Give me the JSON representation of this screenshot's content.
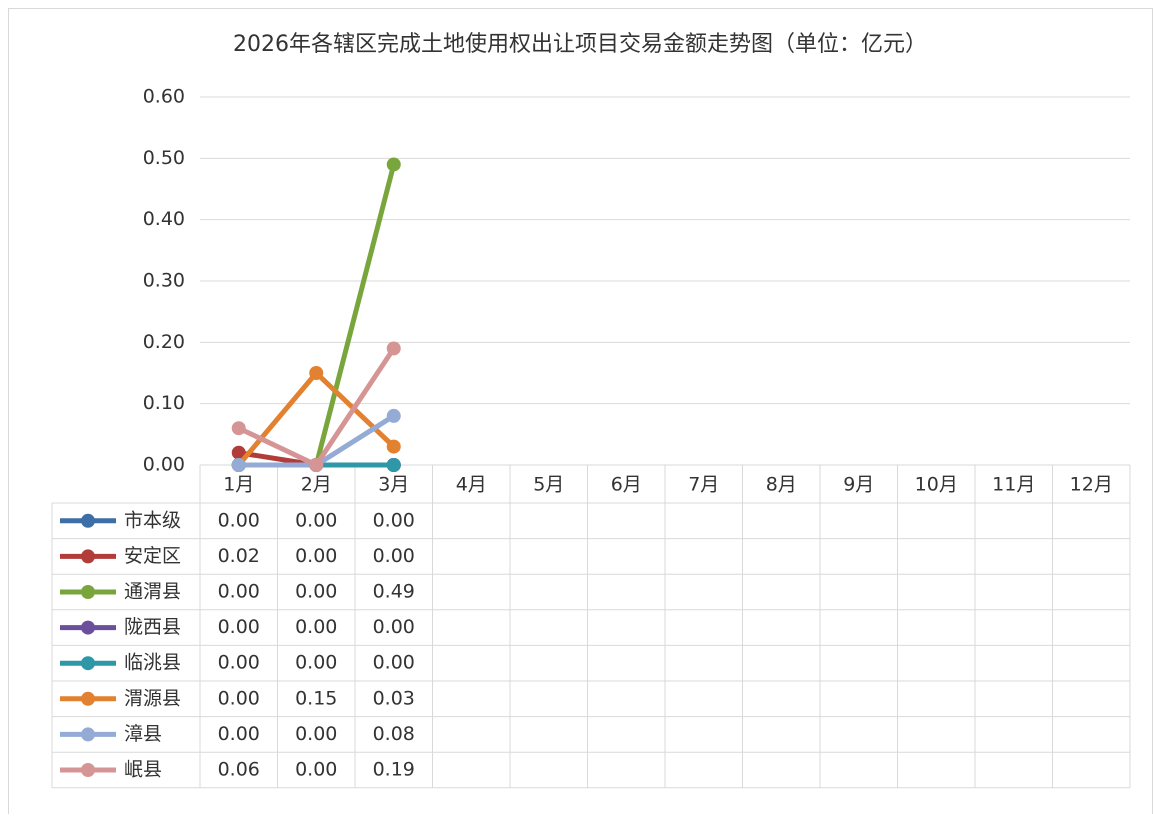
{
  "chart_data": {
    "type": "line",
    "title": "2026年各辖区完成土地使用权出让项目交易金额走势图（单位：亿元）",
    "categories": [
      "1月",
      "2月",
      "3月",
      "4月",
      "5月",
      "6月",
      "7月",
      "8月",
      "9月",
      "10月",
      "11月",
      "12月"
    ],
    "ylim": [
      0,
      0.6
    ],
    "yticks": [
      {
        "value": 0,
        "label": "0.00"
      },
      {
        "value": 0.1,
        "label": "0.10"
      },
      {
        "value": 0.2,
        "label": "0.20"
      },
      {
        "value": 0.3,
        "label": "0.30"
      },
      {
        "value": 0.4,
        "label": "0.40"
      },
      {
        "value": 0.5,
        "label": "0.50"
      },
      {
        "value": 0.6,
        "label": "0.60"
      }
    ],
    "grid": true,
    "series": [
      {
        "name": "市本级",
        "color": "#3d6ea8",
        "values": [
          0,
          0,
          0,
          null,
          null,
          null,
          null,
          null,
          null,
          null,
          null,
          null
        ],
        "value_labels": [
          "0.00",
          "0.00",
          "0.00",
          null,
          null,
          null,
          null,
          null,
          null,
          null,
          null,
          null
        ]
      },
      {
        "name": "安定区",
        "color": "#b23c3a",
        "values": [
          0.02,
          0,
          0,
          null,
          null,
          null,
          null,
          null,
          null,
          null,
          null,
          null
        ],
        "value_labels": [
          "0.02",
          "0.00",
          "0.00",
          null,
          null,
          null,
          null,
          null,
          null,
          null,
          null,
          null
        ]
      },
      {
        "name": "通渭县",
        "color": "#79a63c",
        "values": [
          0,
          0,
          0.49,
          null,
          null,
          null,
          null,
          null,
          null,
          null,
          null,
          null
        ],
        "value_labels": [
          "0.00",
          "0.00",
          "0.49",
          null,
          null,
          null,
          null,
          null,
          null,
          null,
          null,
          null
        ]
      },
      {
        "name": "陇西县",
        "color": "#6c4f9b",
        "values": [
          0,
          0,
          0,
          null,
          null,
          null,
          null,
          null,
          null,
          null,
          null,
          null
        ],
        "value_labels": [
          "0.00",
          "0.00",
          "0.00",
          null,
          null,
          null,
          null,
          null,
          null,
          null,
          null,
          null
        ]
      },
      {
        "name": "临洮县",
        "color": "#2e97a8",
        "values": [
          0,
          0,
          0,
          null,
          null,
          null,
          null,
          null,
          null,
          null,
          null,
          null
        ],
        "value_labels": [
          "0.00",
          "0.00",
          "0.00",
          null,
          null,
          null,
          null,
          null,
          null,
          null,
          null,
          null
        ]
      },
      {
        "name": "渭源县",
        "color": "#e2812f",
        "values": [
          0,
          0.15,
          0.03,
          null,
          null,
          null,
          null,
          null,
          null,
          null,
          null,
          null
        ],
        "value_labels": [
          "0.00",
          "0.15",
          "0.03",
          null,
          null,
          null,
          null,
          null,
          null,
          null,
          null,
          null
        ]
      },
      {
        "name": "漳县",
        "color": "#94abd5",
        "values": [
          0,
          0,
          0.08,
          null,
          null,
          null,
          null,
          null,
          null,
          null,
          null,
          null
        ],
        "value_labels": [
          "0.00",
          "0.00",
          "0.08",
          null,
          null,
          null,
          null,
          null,
          null,
          null,
          null,
          null
        ]
      },
      {
        "name": "岷县",
        "color": "#d59594",
        "values": [
          0.06,
          0,
          0.19,
          null,
          null,
          null,
          null,
          null,
          null,
          null,
          null,
          null
        ],
        "value_labels": [
          "0.06",
          "0.00",
          "0.19",
          null,
          null,
          null,
          null,
          null,
          null,
          null,
          null,
          null
        ]
      }
    ]
  }
}
